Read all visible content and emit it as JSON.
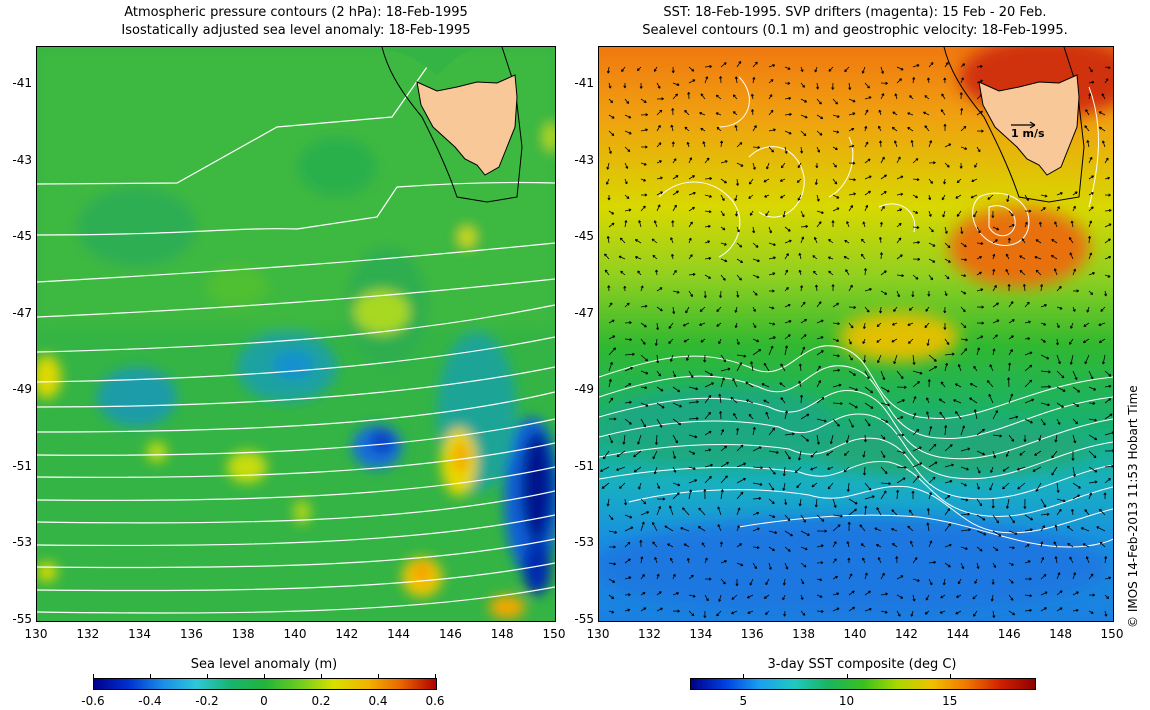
{
  "left_panel": {
    "title_line1": "Atmospheric pressure contours (2 hPa): 18-Feb-1995",
    "title_line2": "Isostatically adjusted sea level anomaly: 18-Feb-1995",
    "colorbar_label": "Sea level anomaly (m)",
    "colorbar_ticks": [
      "-0.6",
      "-0.4",
      "-0.2",
      "0",
      "0.2",
      "0.4",
      "0.6"
    ]
  },
  "right_panel": {
    "title_line1": "SST: 18-Feb-1995. SVP drifters (magenta): 15 Feb - 20 Feb.",
    "title_line2": "Sealevel contours (0.1 m) and geostrophic velocity: 18-Feb-1995.",
    "colorbar_label": "3-day SST composite (deg C)",
    "colorbar_ticks": [
      "5",
      "10",
      "15"
    ],
    "velocity_scale_label": "1 m/s"
  },
  "axes": {
    "y_ticks": [
      "-41",
      "-43",
      "-45",
      "-47",
      "-49",
      "-51",
      "-53",
      "-55"
    ],
    "x_ticks": [
      "130",
      "132",
      "134",
      "136",
      "138",
      "140",
      "142",
      "144",
      "146",
      "148",
      "150"
    ]
  },
  "credit": "© IMOS 14-Feb-2013 11:53 Hobart Time",
  "colors": {
    "land": "#f9c898",
    "contour": "#ffffff",
    "coast": "#000000"
  }
}
